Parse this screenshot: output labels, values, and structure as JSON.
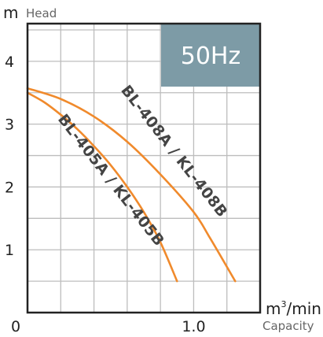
{
  "chart_data": {
    "type": "line",
    "x_unit_base": "m",
    "x_unit_sup": "3",
    "x_unit_tail": "/min",
    "x_label": "Capacity",
    "y_unit": "m",
    "y_label": "Head",
    "xlim": [
      0,
      1.4
    ],
    "ylim": [
      0,
      4.6
    ],
    "x_ticks": [
      {
        "value": 0,
        "label": "0"
      },
      {
        "value": 1.0,
        "label": "1.0"
      }
    ],
    "y_ticks": [
      {
        "value": 1,
        "label": "1"
      },
      {
        "value": 2,
        "label": "2"
      },
      {
        "value": 3,
        "label": "3"
      },
      {
        "value": 4,
        "label": "4"
      }
    ],
    "grid": true,
    "grid_x_step": 0.2,
    "grid_y_step": 0.5,
    "frequency_badge": "50Hz",
    "badge_color": "#7d9ba6",
    "series_color": "#f08a2c",
    "series": [
      {
        "name": "BL-405A / KL-405B",
        "points": [
          [
            0,
            3.5
          ],
          [
            0.1,
            3.35
          ],
          [
            0.2,
            3.15
          ],
          [
            0.3,
            2.92
          ],
          [
            0.4,
            2.65
          ],
          [
            0.5,
            2.35
          ],
          [
            0.6,
            2.0
          ],
          [
            0.7,
            1.6
          ],
          [
            0.8,
            1.12
          ],
          [
            0.9,
            0.5
          ]
        ]
      },
      {
        "name": "BL-408A / KL-408B",
        "points": [
          [
            0,
            3.57
          ],
          [
            0.2,
            3.4
          ],
          [
            0.4,
            3.12
          ],
          [
            0.6,
            2.72
          ],
          [
            0.8,
            2.2
          ],
          [
            1.0,
            1.6
          ],
          [
            1.1,
            1.18
          ],
          [
            1.25,
            0.5
          ]
        ]
      }
    ],
    "series_label_anchor": [
      [
        0.48,
        2.06
      ],
      [
        0.86,
        2.52
      ]
    ]
  }
}
